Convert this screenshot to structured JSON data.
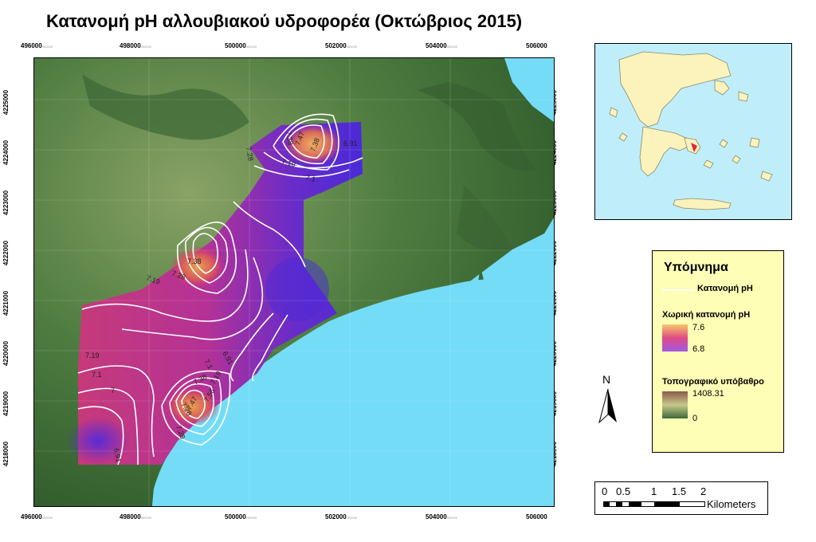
{
  "title": "Κατανομή pH αλλουβιακού υδροφορέα (Οκτώβριος 2015)",
  "colors": {
    "sea": "#74dcf7",
    "terrain": "#4a7a3e",
    "terrain_dark": "#2e5a2a",
    "ph_high": "#e8a050",
    "ph_mid": "#d8306e",
    "ph_low": "#5a2ad6",
    "legend_bg": "#fefeb6",
    "inset_land": "#fbf3bb",
    "inset_sea": "#bfeefa",
    "study_area": "#e8203a"
  },
  "map": {
    "x_ticks": [
      "496000",
      "498000",
      "500000",
      "502000",
      "504000",
      "506000"
    ],
    "y_ticks": [
      "4225000",
      "4224000",
      "4223000",
      "4222000",
      "4221000",
      "4220000",
      "4219000",
      "4218000"
    ],
    "tick_suffix": "000000",
    "contour_labels": [
      {
        "text": "7.28",
        "group": "north"
      },
      {
        "text": "7.38",
        "group": "north"
      },
      {
        "text": "7.47",
        "group": "north"
      },
      {
        "text": "7.38",
        "group": "north"
      },
      {
        "text": "6.91",
        "group": "north"
      },
      {
        "text": "7.19",
        "group": "north"
      },
      {
        "text": "7.1",
        "group": "north"
      },
      {
        "text": "7.38",
        "group": "west"
      },
      {
        "text": "7.28",
        "group": "west"
      },
      {
        "text": "7.19",
        "group": "west"
      },
      {
        "text": "7.19",
        "group": "southwest"
      },
      {
        "text": "7.1",
        "group": "southwest"
      },
      {
        "text": "7",
        "group": "southwest"
      },
      {
        "text": "6.91",
        "group": "southwest"
      },
      {
        "text": "6.91",
        "group": "central"
      },
      {
        "text": "7.1",
        "group": "central"
      },
      {
        "text": "7.38",
        "group": "south"
      },
      {
        "text": "7.28",
        "group": "south"
      },
      {
        "text": "7.47",
        "group": "south"
      },
      {
        "text": "7.56",
        "group": "south"
      },
      {
        "text": "7.19",
        "group": "south"
      },
      {
        "text": "7.28",
        "group": "south"
      }
    ]
  },
  "legend": {
    "title": "Υπόμνημα",
    "contour_label": "Κατανομή pH",
    "ph_title": "Χωρική κατανομή pH",
    "ph_max": "7.6",
    "ph_min": "6.8",
    "topo_title": "Τοπογραφικό υπόβαθρο",
    "topo_max": "1408.31",
    "topo_min": "0"
  },
  "north_arrow": {
    "label": "N"
  },
  "scale_bar": {
    "labels": [
      "0",
      "0.5",
      "1",
      "1.5",
      "2"
    ],
    "unit": "Kilometers"
  }
}
